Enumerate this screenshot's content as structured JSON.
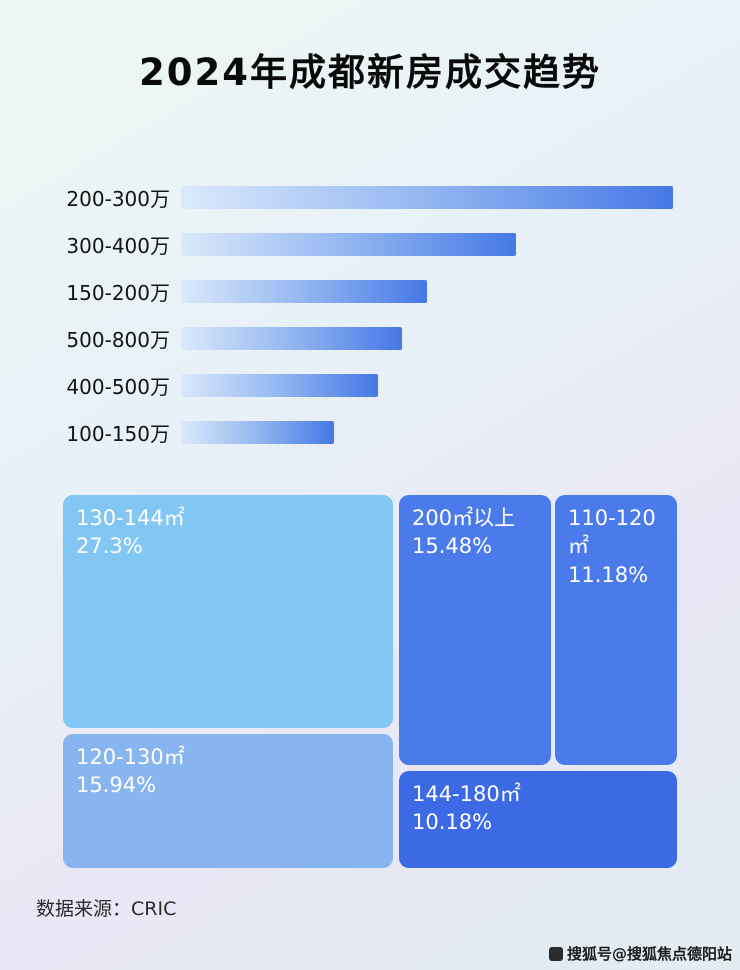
{
  "title": "2024年成都新房成交趋势",
  "source": "数据来源：CRIC",
  "watermark": {
    "icon": "sohu-logo",
    "text": "搜狐号@搜狐焦点德阳站"
  },
  "colors": {
    "bar_gradient_start": "#dbe9fb",
    "bar_gradient_mid": "#93b6f1",
    "bar_gradient_end": "#4678e5"
  },
  "chart_data": [
    {
      "type": "bar",
      "orientation": "horizontal",
      "title": "2024年成都新房成交趋势",
      "categories": [
        "200-300万",
        "300-400万",
        "150-200万",
        "500-800万",
        "400-500万",
        "100-150万"
      ],
      "values_pct_of_max": [
        100,
        68,
        50,
        45,
        40,
        31
      ],
      "axis_labels_shown": false,
      "grid": false,
      "legend": false
    },
    {
      "type": "treemap",
      "items": [
        {
          "label": "130-144㎡",
          "value": 27.3,
          "display": "27.3%",
          "color": "#82c6f4"
        },
        {
          "label": "120-130㎡",
          "value": 15.94,
          "display": "15.94%",
          "color": "#88b5f0"
        },
        {
          "label": "200㎡以上",
          "value": 15.48,
          "display": "15.48%",
          "color": "#4b7bea"
        },
        {
          "label": "110-120㎡",
          "value": 11.18,
          "display": "11.18%",
          "color": "#4b7bea"
        },
        {
          "label": "144-180㎡",
          "value": 10.18,
          "display": "10.18%",
          "color": "#3c6ae4"
        }
      ]
    }
  ]
}
